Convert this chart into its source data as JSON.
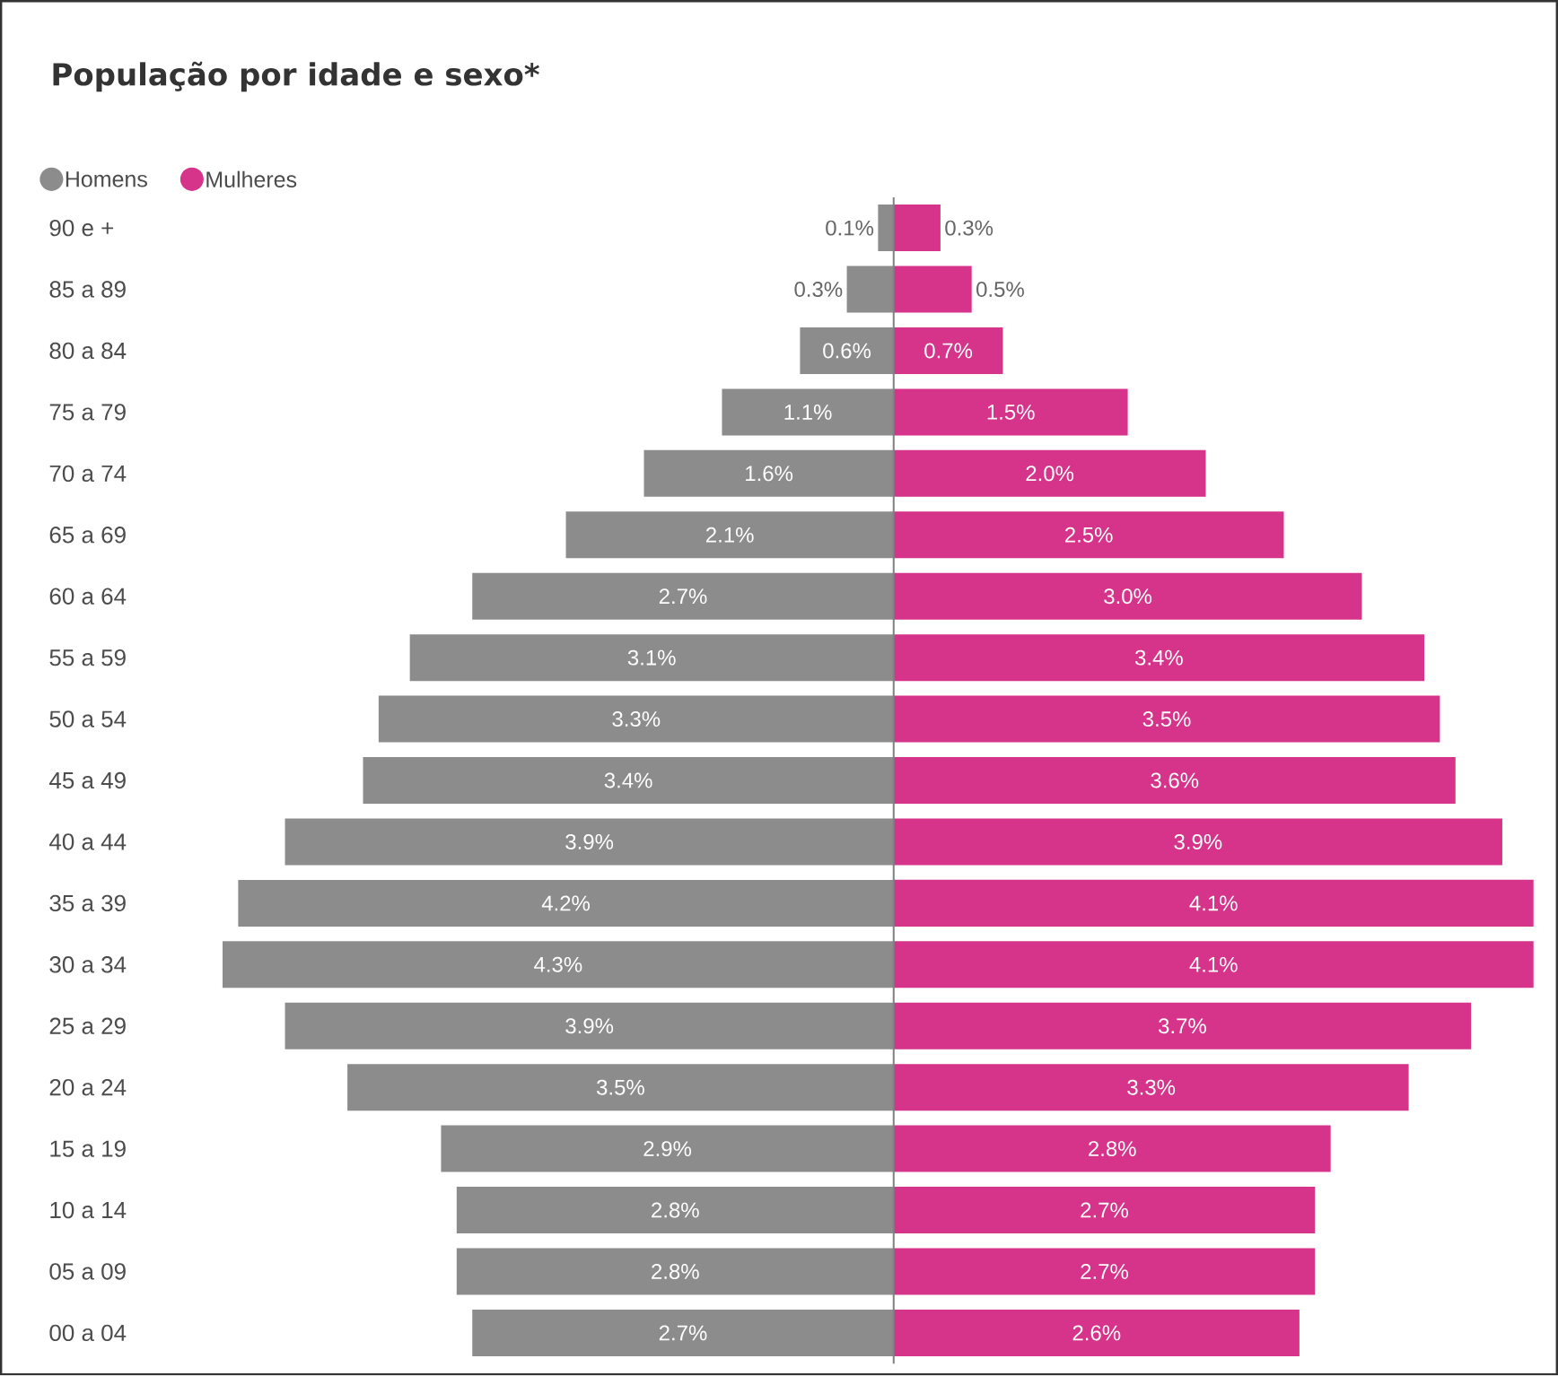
{
  "chart_data": [
    {
      "type": "bar",
      "orientation": "horizontal",
      "title": "População por idade e sexo*",
      "categories": [
        "90 e +",
        "85 a 89",
        "80 a 84",
        "75 a 79",
        "70 a 74",
        "65 a 69",
        "60 a 64",
        "55 a 59",
        "50 a 54",
        "45 a 49",
        "40 a 44",
        "35 a 39",
        "30 a 34",
        "25 a 29",
        "20 a 24",
        "15 a 19",
        "10 a 14",
        "05 a 09",
        "00 a 04"
      ],
      "series": [
        {
          "name": "Homens",
          "color": "#8c8c8c",
          "values": [
            0.1,
            0.3,
            0.6,
            1.1,
            1.6,
            2.1,
            2.7,
            3.1,
            3.3,
            3.4,
            3.9,
            4.2,
            4.3,
            3.9,
            3.5,
            2.9,
            2.8,
            2.8,
            2.7
          ],
          "value_labels": [
            "0.1%",
            "0.3%",
            "0.6%",
            "1.1%",
            "1.6%",
            "2.1%",
            "2.7%",
            "3.1%",
            "3.3%",
            "3.4%",
            "3.9%",
            "4.2%",
            "4.3%",
            "3.9%",
            "3.5%",
            "2.9%",
            "2.8%",
            "2.8%",
            "2.7%"
          ]
        }
      ],
      "xlim": [
        4.3,
        0
      ],
      "tick_labels": "y",
      "legend": "top left"
    },
    {
      "type": "bar",
      "orientation": "horizontal",
      "categories": [
        null,
        null,
        null,
        null,
        null,
        null,
        null,
        null,
        null,
        null,
        null,
        null,
        null,
        null,
        null,
        null,
        null,
        null,
        null
      ],
      "series": [
        {
          "name": "Mulheres",
          "color": "#d6338a",
          "values": [
            0.3,
            0.5,
            0.7,
            1.5,
            2.0,
            2.5,
            3.0,
            3.4,
            3.5,
            3.6,
            3.9,
            4.1,
            4.1,
            3.7,
            3.3,
            2.8,
            2.7,
            2.7,
            2.6
          ],
          "value_labels": [
            "0.3%",
            "0.5%",
            "0.7%",
            "1.5%",
            "2.0%",
            "2.5%",
            "3.0%",
            "3.4%",
            "3.5%",
            "3.6%",
            "3.9%",
            "4.1%",
            "4.1%",
            "3.7%",
            "3.3%",
            "2.8%",
            "2.7%",
            "2.7%",
            "2.6%"
          ]
        }
      ],
      "xlim": [
        0,
        4.1
      ],
      "tick_labels": false,
      "legend": "top left",
      "ref_lines": [
        {
          "axis": "x",
          "value": 0,
          "color": "#808080"
        }
      ]
    }
  ]
}
